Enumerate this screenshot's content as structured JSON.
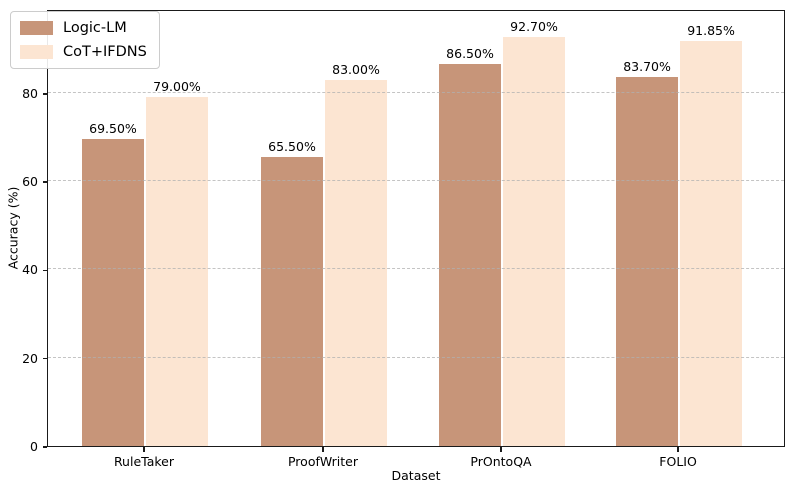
{
  "chart_data": {
    "type": "bar",
    "title": "",
    "xlabel": "Dataset",
    "ylabel": "Accuracy (%)",
    "categories": [
      "RuleTaker",
      "ProofWriter",
      "PrOntoQA",
      "FOLIO"
    ],
    "series": [
      {
        "name": "Logic-LM",
        "color": "#c79579",
        "values": [
          69.5,
          65.5,
          86.5,
          83.7
        ],
        "labels": [
          "69.50%",
          "65.50%",
          "86.50%",
          "83.70%"
        ]
      },
      {
        "name": "CoT+IFDNS",
        "color": "#fce5d2",
        "values": [
          79.0,
          83.0,
          92.7,
          91.85
        ],
        "labels": [
          "79.00%",
          "83.00%",
          "92.70%",
          "91.85%"
        ]
      }
    ],
    "ylim": [
      0,
      99
    ],
    "yticks": [
      0,
      20,
      40,
      60,
      80
    ],
    "grid": true,
    "grid_style": "dashed",
    "legend_position": "upper left",
    "frame_color": "#1a1a1a",
    "background_color": "#ffffff"
  }
}
